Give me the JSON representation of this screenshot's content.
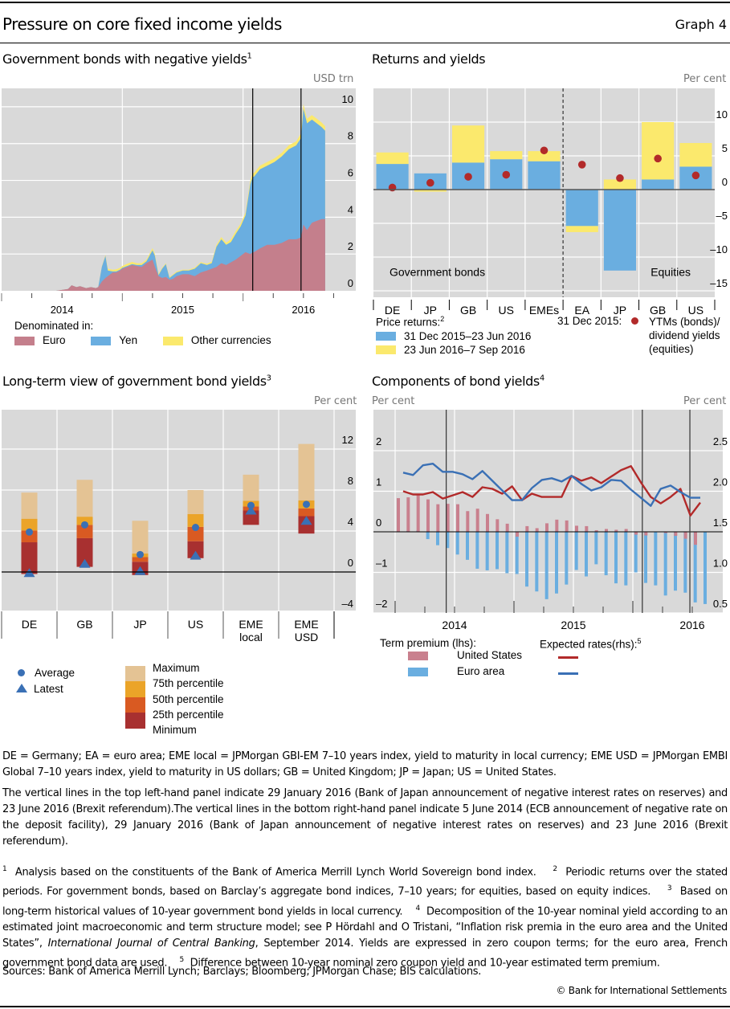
{
  "header": {
    "title": "Pressure on core fixed income yields",
    "graph_number": "Graph 4"
  },
  "colors": {
    "plot_bg": "#d9d9d9",
    "gridline": "#ffffff",
    "euro": "#c47f8c",
    "yen": "#6aaee0",
    "other": "#fbe96d",
    "bond_blue": "#6aaee0",
    "bond_yellow": "#fbe96d",
    "dot_red": "#b22a2a",
    "max": "#e4c394",
    "p75": "#eba428",
    "p50": "#d95a22",
    "p25": "#a83030",
    "marker_blue": "#3a70b5",
    "us_tp": "#c9808e",
    "ea_tp": "#6aaee0",
    "us_line": "#b22a2a",
    "ea_line": "#3a70b5"
  },
  "chart_data": [
    {
      "id": "negative-yields",
      "type": "area",
      "title": "Government bonds with negative yields",
      "title_footnote": "1",
      "ylabel": "USD trn",
      "ylim": [
        0,
        11
      ],
      "yticks": [
        0,
        2,
        4,
        6,
        8,
        10
      ],
      "xlim": [
        2014.0,
        2017.0
      ],
      "year_labels": [
        "2014",
        "2015",
        "2016"
      ],
      "legend_title": "Denominated in:",
      "legend": [
        "Euro",
        "Yen",
        "Other currencies"
      ],
      "vlines": [
        "29 January 2016",
        "23 June 2016"
      ],
      "vline_x": [
        2016.08,
        2016.48
      ],
      "x": [
        2014.45,
        2014.5,
        2014.55,
        2014.58,
        2014.62,
        2014.65,
        2014.7,
        2014.74,
        2014.78,
        2014.8,
        2014.83,
        2014.86,
        2014.88,
        2014.92,
        2014.95,
        2014.98,
        2015.0,
        2015.04,
        2015.08,
        2015.12,
        2015.16,
        2015.2,
        2015.25,
        2015.27,
        2015.3,
        2015.33,
        2015.36,
        2015.39,
        2015.42,
        2015.45,
        2015.5,
        2015.55,
        2015.6,
        2015.65,
        2015.7,
        2015.74,
        2015.78,
        2015.82,
        2015.86,
        2015.9,
        2015.94,
        2015.98,
        2016.02,
        2016.06,
        2016.08,
        2016.09,
        2016.14,
        2016.2,
        2016.26,
        2016.32,
        2016.38,
        2016.44,
        2016.48,
        2016.5,
        2016.53,
        2016.57,
        2016.61,
        2016.65,
        2016.68
      ],
      "series": [
        {
          "name": "Euro",
          "values": [
            0,
            0.05,
            0.1,
            0.3,
            0.2,
            0.25,
            0.15,
            0.2,
            0.15,
            0.2,
            0.5,
            0.7,
            0.8,
            1.0,
            1.0,
            1.1,
            1.2,
            1.3,
            1.4,
            1.35,
            1.3,
            1.5,
            1.7,
            1.3,
            0.8,
            0.7,
            0.75,
            0.6,
            0.65,
            0.8,
            0.9,
            0.9,
            0.8,
            1.0,
            1.1,
            1.2,
            1.3,
            1.5,
            1.4,
            1.55,
            1.7,
            1.9,
            2.1,
            2.0,
            2.1,
            2.1,
            2.3,
            2.5,
            2.5,
            2.6,
            2.8,
            2.8,
            2.9,
            3.6,
            3.3,
            3.7,
            3.8,
            3.9,
            3.9
          ]
        },
        {
          "name": "Yen",
          "values": [
            0,
            0,
            0,
            0,
            0,
            0,
            0,
            0,
            0,
            0,
            0.8,
            1.2,
            0.3,
            0.05,
            0.05,
            0.05,
            0.05,
            0.05,
            0.05,
            0.05,
            0.1,
            0.1,
            0.5,
            0.6,
            0.05,
            0.5,
            0.7,
            0.1,
            0.2,
            0.2,
            0.2,
            0.2,
            0.4,
            0.5,
            0.3,
            0.3,
            1.1,
            1.3,
            1.1,
            1.1,
            1.4,
            1.6,
            2.0,
            3.8,
            4.1,
            4.1,
            4.3,
            4.3,
            4.5,
            4.7,
            4.9,
            5.1,
            5.4,
            6.3,
            5.8,
            5.6,
            5.3,
            5.0,
            4.8
          ]
        },
        {
          "name": "Other currencies",
          "values": [
            0,
            0,
            0,
            0,
            0,
            0,
            0,
            0,
            0,
            0,
            0.02,
            0.05,
            0.1,
            0.1,
            0.12,
            0.1,
            0.1,
            0.12,
            0.12,
            0.1,
            0.1,
            0.1,
            0.12,
            0.1,
            0.08,
            0.05,
            0.05,
            0.05,
            0.05,
            0.05,
            0.05,
            0.05,
            0.06,
            0.06,
            0.07,
            0.08,
            0.1,
            0.12,
            0.12,
            0.15,
            0.15,
            0.15,
            0.15,
            0.2,
            0.2,
            0.2,
            0.2,
            0.2,
            0.2,
            0.2,
            0.22,
            0.22,
            0.25,
            0.25,
            0.25,
            0.25,
            0.25,
            0.25,
            0.25
          ]
        }
      ]
    },
    {
      "id": "returns-yields",
      "type": "bar",
      "title": "Returns and yields",
      "ylabel": "Per cent",
      "ylim": [
        -16,
        14
      ],
      "yticks": [
        -15,
        -10,
        -5,
        0,
        5,
        10
      ],
      "ytick_labels": [
        "–15",
        "–10",
        "–5",
        "0",
        "5",
        "10"
      ],
      "categories": [
        "DE",
        "JP",
        "GB",
        "US",
        "EMEs",
        "EA",
        "JP",
        "GB",
        "US"
      ],
      "groups": [
        {
          "label": "Government bonds",
          "count": 5
        },
        {
          "label": "Equities",
          "count": 4
        }
      ],
      "series": [
        {
          "name": "31 Dec 2015–23 Jun 2016",
          "values": [
            3.8,
            2.4,
            4.0,
            4.5,
            4.2,
            -5.4,
            -12.0,
            1.5,
            3.4
          ]
        },
        {
          "name": "23 Jun 2016–7 Sep 2016",
          "values": [
            1.7,
            -0.3,
            5.5,
            1.2,
            1.5,
            -0.9,
            1.5,
            8.5,
            3.5
          ]
        },
        {
          "name": "YTMs (bonds)/ dividend yields (equities)",
          "values": [
            0.3,
            1.0,
            1.9,
            2.2,
            5.8,
            3.7,
            1.7,
            4.6,
            2.1
          ]
        }
      ],
      "legend_title": "Price returns:",
      "legend_title_footnote": "2",
      "dot_legend_prefix": "31 Dec 2015:",
      "dot_legend_lines": [
        "YTMs (bonds)/",
        "dividend yields",
        "(equities)"
      ]
    },
    {
      "id": "long-term-view",
      "type": "bar",
      "title": "Long-term view of government bond yields",
      "title_footnote": "3",
      "ylabel": "Per cent",
      "ylim": [
        -5,
        16
      ],
      "yticks": [
        -4,
        0,
        4,
        8,
        12
      ],
      "ytick_labels": [
        "–4",
        "0",
        "4",
        "8",
        "12"
      ],
      "categories": [
        [
          "DE"
        ],
        [
          "GB"
        ],
        [
          "JP"
        ],
        [
          "US"
        ],
        [
          "EME",
          "local"
        ],
        [
          "EME",
          "USD"
        ]
      ],
      "minimum": [
        -0.2,
        0.5,
        -0.3,
        1.35,
        4.6,
        3.75
      ],
      "p25": [
        2.9,
        3.3,
        1.0,
        3.0,
        6.0,
        5.45
      ],
      "p50": [
        4.05,
        4.6,
        1.45,
        4.4,
        6.4,
        6.2
      ],
      "p75": [
        5.2,
        5.4,
        1.8,
        5.65,
        6.95,
        7.0
      ],
      "maximum": [
        7.75,
        9.0,
        5.0,
        8.0,
        9.5,
        12.5
      ],
      "average": [
        3.9,
        4.6,
        1.7,
        4.35,
        6.5,
        6.6
      ],
      "latest": [
        -0.1,
        0.8,
        0.1,
        1.6,
        6.0,
        5.0
      ],
      "legend_markers": [
        "Average",
        "Latest"
      ],
      "legend_bands": [
        "Maximum",
        "75th percentile",
        "50th percentile",
        "25th percentile",
        "Minimum"
      ]
    },
    {
      "id": "components",
      "type": "bar",
      "title": "Components of bond yields",
      "title_footnote": "4",
      "ylabel_left": "Per cent",
      "ylabel_right": "Per cent",
      "ylim_left": [
        -2.3,
        2.9
      ],
      "ylim_right": [
        0.35,
        2.95
      ],
      "yticks_left": [
        -2,
        -1,
        0,
        1,
        2
      ],
      "ytick_labels_left": [
        "–2",
        "–1",
        "0",
        "1",
        "2"
      ],
      "yticks_right": [
        0.5,
        1.0,
        1.5,
        2.0,
        2.5
      ],
      "ytick_labels_right": [
        "0.5",
        "1.0",
        "1.5",
        "2.0",
        "2.5"
      ],
      "xlim": [
        2013.55,
        2016.75
      ],
      "year_labels": [
        "2014",
        "2015",
        "2016"
      ],
      "vline_x": [
        2014.43,
        2016.08,
        2016.48
      ],
      "x_start": "Jan 2014",
      "x_frequency": "monthly",
      "series": [
        {
          "name": "United States",
          "group": "Term premium (lhs)",
          "kind": "bar",
          "values": [
            0.83,
            0.85,
            0.9,
            0.8,
            0.68,
            0.69,
            0.68,
            0.51,
            0.57,
            0.44,
            0.31,
            0.2,
            -0.12,
            0.14,
            0.09,
            0.21,
            0.3,
            0.28,
            0.15,
            0.14,
            0.04,
            0.07,
            0.05,
            0.07,
            -0.07,
            -0.09,
            -0.01,
            -0.03,
            -0.1,
            -0.17,
            -0.32
          ]
        },
        {
          "name": "Euro area",
          "group": "Term premium (lhs)",
          "kind": "bar",
          "values": [
            0.02,
            0.03,
            -0.18,
            -0.33,
            -0.4,
            -0.56,
            -0.69,
            -0.91,
            -0.95,
            -0.92,
            -1.02,
            -1.04,
            -1.35,
            -1.47,
            -1.66,
            -1.52,
            -1.3,
            -0.94,
            -1.1,
            -0.8,
            -1.07,
            -1.27,
            -1.32,
            -1.0,
            -1.26,
            -1.32,
            -1.57,
            -1.45,
            -1.5,
            -1.74,
            -1.78
          ]
        },
        {
          "name": "United States",
          "group": "Expected rates (rhs)",
          "kind": "line",
          "values": [
            2.0,
            1.96,
            1.96,
            1.99,
            1.91,
            1.95,
            1.99,
            1.93,
            2.05,
            2.03,
            1.97,
            2.06,
            1.89,
            1.97,
            1.93,
            1.93,
            1.93,
            2.19,
            2.13,
            2.17,
            2.1,
            2.18,
            2.26,
            2.31,
            2.11,
            1.93,
            1.85,
            1.93,
            2.03,
            1.7,
            1.86
          ]
        },
        {
          "name": "Euro area",
          "group": "Expected rates (rhs)",
          "kind": "line",
          "values": [
            2.23,
            2.2,
            2.32,
            2.34,
            2.24,
            2.24,
            2.21,
            2.15,
            2.25,
            2.13,
            2.01,
            1.89,
            1.89,
            2.04,
            2.14,
            2.16,
            2.12,
            2.19,
            2.09,
            2.01,
            2.05,
            2.14,
            2.13,
            2.02,
            1.92,
            1.82,
            2.03,
            2.07,
            1.99,
            1.92,
            1.92
          ]
        }
      ],
      "legend_left_title": "Term premium (lhs):",
      "legend_right_title": "Expected rates(rhs):",
      "legend_right_footnote": "5",
      "legend_labels": [
        "United States",
        "Euro area"
      ]
    }
  ],
  "notes": {
    "abbreviations": "DE = Germany; EA = euro area; EME local = JPMorgan GBI-EM 7–10 years index, yield to maturity in local currency; EME USD = JPMorgan EMBI Global 7–10 years index, yield to maturity in US dollars; GB = United Kingdom; JP = Japan; US = United States.",
    "vertical_lines": "The vertical lines in the top left-hand panel indicate 29 January 2016 (Bank of Japan announcement of negative interest rates on reserves) and 23 June 2016 (Brexit referendum).The vertical lines in the bottom right-hand panel indicate 5 June 2014 (ECB announcement of negative rate on the deposit facility), 29 January 2016 (Bank of Japan announcement of negative interest rates on reserves) and 23 June 2016 (Brexit referendum).",
    "fn1": "Analysis based on the constituents of the Bank of America Merrill Lynch World Sovereign bond index.",
    "fn2": "Periodic returns over the stated periods. For government bonds, based on Barclay’s aggregate bond indices, 7–10 years; for equities, based on equity indices.",
    "fn3": "Based on long-term historical values of 10-year government bond yields in local currency.",
    "fn4a": "Decomposition of the 10-year nominal yield according to an estimated joint macroeconomic and term structure model; see P Hördahl and O Tristani, “Inflation risk premia in the euro area and the United States”, ",
    "fn4_journal": "International Journal of Central Banking",
    "fn4b": ", September 2014. Yields are expressed in zero coupon terms; for the euro area, French government bond data are used.",
    "fn5": "Difference between 10-year nominal zero coupon yield and 10-year estimated term premium.",
    "sources": "Sources: Bank of America Merrill Lynch; Barclays; Bloomberg; JPMorgan Chase; BIS calculations.",
    "copyright": "© Bank for International Settlements"
  }
}
